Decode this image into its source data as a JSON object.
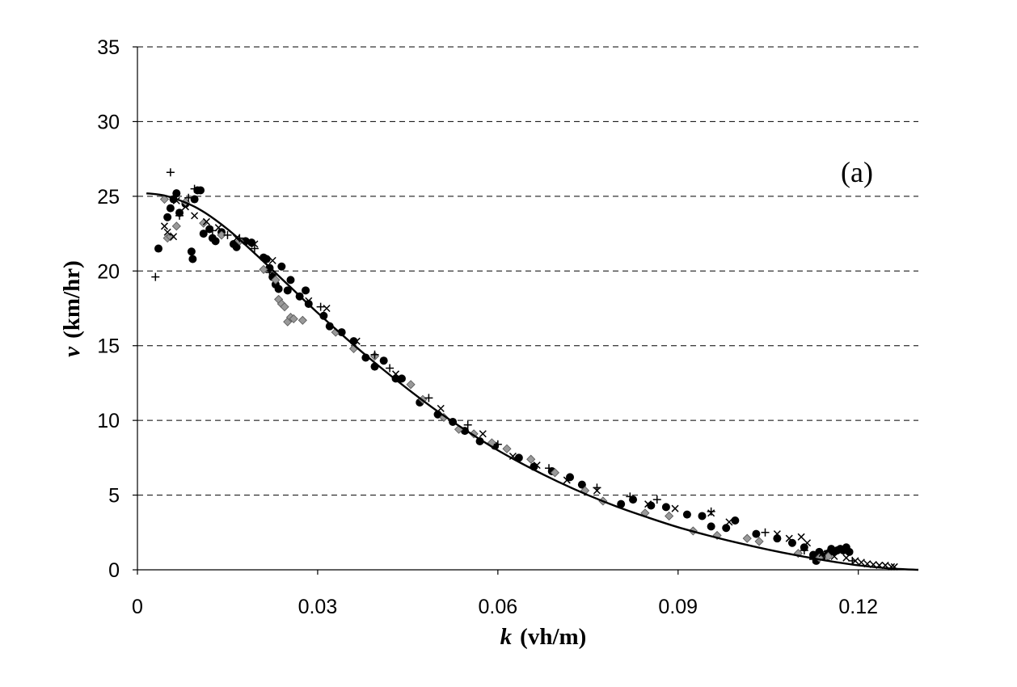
{
  "chart_data": {
    "type": "scatter",
    "panel_label": "(a)",
    "xlabel": {
      "symbol": "k",
      "unit": "(vh/m)"
    },
    "ylabel": {
      "symbol": "v",
      "unit": "(km/hr)"
    },
    "xlim": [
      0,
      0.13
    ],
    "ylim": [
      0,
      35
    ],
    "x_ticks": [
      0,
      0.03,
      0.06,
      0.09,
      0.12
    ],
    "x_tick_labels": [
      "0",
      "0.03",
      "0.06",
      "0.09",
      "0.12"
    ],
    "y_ticks": [
      0,
      5,
      10,
      15,
      20,
      25,
      30,
      35
    ],
    "y_tick_labels": [
      "0",
      "5",
      "10",
      "15",
      "20",
      "25",
      "30",
      "35"
    ],
    "grid": "horizontal dashed",
    "colors": {
      "dark": "#000000",
      "gray_marker": "#999999"
    },
    "fit_curve": {
      "x": [
        0.0015,
        0.005,
        0.01,
        0.015,
        0.02,
        0.025,
        0.03,
        0.035,
        0.04,
        0.045,
        0.05,
        0.055,
        0.06,
        0.065,
        0.07,
        0.075,
        0.08,
        0.085,
        0.09,
        0.095,
        0.1,
        0.105,
        0.11,
        0.115,
        0.12,
        0.125,
        0.13
      ],
      "y": [
        25.2,
        25.0,
        24.2,
        22.8,
        21.0,
        19.1,
        17.2,
        15.4,
        13.7,
        12.1,
        10.6,
        9.25,
        8.0,
        6.9,
        5.9,
        5.0,
        4.2,
        3.5,
        2.85,
        2.3,
        1.8,
        1.35,
        0.95,
        0.6,
        0.3,
        0.1,
        0.0
      ]
    },
    "series": [
      {
        "marker": "circle",
        "points": [
          [
            0.0035,
            21.5
          ],
          [
            0.005,
            23.6
          ],
          [
            0.0055,
            24.2
          ],
          [
            0.006,
            24.8
          ],
          [
            0.0065,
            25.2
          ],
          [
            0.007,
            23.9
          ],
          [
            0.008,
            24.5
          ],
          [
            0.009,
            21.3
          ],
          [
            0.0092,
            20.8
          ],
          [
            0.0095,
            24.8
          ],
          [
            0.01,
            25.4
          ],
          [
            0.0105,
            25.4
          ],
          [
            0.011,
            22.5
          ],
          [
            0.012,
            22.8
          ],
          [
            0.0125,
            22.2
          ],
          [
            0.013,
            22.0
          ],
          [
            0.014,
            22.6
          ],
          [
            0.016,
            21.8
          ],
          [
            0.0165,
            21.6
          ],
          [
            0.018,
            22.0
          ],
          [
            0.019,
            21.9
          ],
          [
            0.021,
            20.9
          ],
          [
            0.0215,
            20.8
          ],
          [
            0.022,
            20.2
          ],
          [
            0.0225,
            19.6
          ],
          [
            0.023,
            19.1
          ],
          [
            0.0235,
            18.8
          ],
          [
            0.024,
            20.3
          ],
          [
            0.025,
            18.7
          ],
          [
            0.0255,
            19.4
          ],
          [
            0.027,
            18.3
          ],
          [
            0.028,
            18.7
          ],
          [
            0.0285,
            17.8
          ],
          [
            0.031,
            17.0
          ],
          [
            0.032,
            16.3
          ],
          [
            0.034,
            15.9
          ],
          [
            0.036,
            15.3
          ],
          [
            0.038,
            14.2
          ],
          [
            0.0395,
            13.6
          ],
          [
            0.041,
            14.0
          ],
          [
            0.043,
            12.8
          ],
          [
            0.044,
            12.8
          ],
          [
            0.047,
            11.2
          ],
          [
            0.05,
            10.4
          ],
          [
            0.0525,
            9.9
          ],
          [
            0.0545,
            9.3
          ],
          [
            0.057,
            8.6
          ],
          [
            0.0595,
            8.3
          ],
          [
            0.0635,
            7.5
          ],
          [
            0.066,
            6.9
          ],
          [
            0.069,
            6.6
          ],
          [
            0.072,
            6.2
          ],
          [
            0.074,
            5.7
          ],
          [
            0.0805,
            4.4
          ],
          [
            0.0825,
            4.7
          ],
          [
            0.0855,
            4.3
          ],
          [
            0.088,
            4.2
          ],
          [
            0.0915,
            3.7
          ],
          [
            0.094,
            3.6
          ],
          [
            0.0955,
            2.9
          ],
          [
            0.098,
            2.8
          ],
          [
            0.0995,
            3.3
          ],
          [
            0.103,
            2.4
          ],
          [
            0.1065,
            2.1
          ],
          [
            0.109,
            1.8
          ],
          [
            0.111,
            1.5
          ],
          [
            0.1125,
            1.0
          ],
          [
            0.113,
            0.6
          ],
          [
            0.1135,
            1.2
          ],
          [
            0.114,
            0.9
          ],
          [
            0.115,
            1.1
          ],
          [
            0.1155,
            1.4
          ],
          [
            0.116,
            1.2
          ],
          [
            0.1165,
            1.3
          ],
          [
            0.117,
            1.4
          ],
          [
            0.1175,
            1.3
          ],
          [
            0.118,
            1.5
          ],
          [
            0.1185,
            1.2
          ]
        ]
      },
      {
        "marker": "diamond",
        "points": [
          [
            0.0045,
            24.8
          ],
          [
            0.005,
            22.2
          ],
          [
            0.0055,
            22.3
          ],
          [
            0.0065,
            23.0
          ],
          [
            0.008,
            24.6
          ],
          [
            0.011,
            23.2
          ],
          [
            0.014,
            22.4
          ],
          [
            0.017,
            22.0
          ],
          [
            0.021,
            20.1
          ],
          [
            0.023,
            19.4
          ],
          [
            0.0235,
            18.1
          ],
          [
            0.024,
            17.8
          ],
          [
            0.0245,
            17.6
          ],
          [
            0.025,
            16.6
          ],
          [
            0.0255,
            16.9
          ],
          [
            0.026,
            16.8
          ],
          [
            0.0275,
            16.7
          ],
          [
            0.033,
            15.9
          ],
          [
            0.036,
            14.8
          ],
          [
            0.0395,
            14.3
          ],
          [
            0.0455,
            12.4
          ],
          [
            0.0475,
            11.4
          ],
          [
            0.051,
            10.2
          ],
          [
            0.0535,
            9.4
          ],
          [
            0.056,
            9.1
          ],
          [
            0.059,
            8.5
          ],
          [
            0.0615,
            8.1
          ],
          [
            0.0655,
            7.4
          ],
          [
            0.0695,
            6.5
          ],
          [
            0.0745,
            5.3
          ],
          [
            0.0775,
            4.6
          ],
          [
            0.0845,
            3.8
          ],
          [
            0.0885,
            3.6
          ],
          [
            0.0925,
            2.6
          ],
          [
            0.0965,
            2.3
          ],
          [
            0.1015,
            2.1
          ],
          [
            0.1035,
            1.9
          ],
          [
            0.11,
            1.1
          ],
          [
            0.1135,
            0.8
          ],
          [
            0.115,
            0.9
          ]
        ]
      },
      {
        "marker": "plus",
        "points": [
          [
            0.003,
            19.6
          ],
          [
            0.0055,
            26.6
          ],
          [
            0.007,
            23.7
          ],
          [
            0.0085,
            24.9
          ],
          [
            0.0095,
            25.5
          ],
          [
            0.0125,
            22.7
          ],
          [
            0.015,
            22.4
          ],
          [
            0.017,
            22.2
          ],
          [
            0.0195,
            21.5
          ],
          [
            0.022,
            19.9
          ],
          [
            0.0305,
            17.6
          ],
          [
            0.0395,
            14.4
          ],
          [
            0.042,
            13.5
          ],
          [
            0.0485,
            11.5
          ],
          [
            0.055,
            9.7
          ],
          [
            0.06,
            8.4
          ],
          [
            0.0685,
            6.8
          ],
          [
            0.0765,
            5.5
          ],
          [
            0.082,
            4.9
          ],
          [
            0.0865,
            4.7
          ],
          [
            0.0955,
            3.9
          ],
          [
            0.1045,
            2.5
          ],
          [
            0.111,
            1.3
          ],
          [
            0.1125,
            0.7
          ],
          [
            0.119,
            0.6
          ]
        ]
      },
      {
        "marker": "cross",
        "points": [
          [
            0.0045,
            23.0
          ],
          [
            0.005,
            22.6
          ],
          [
            0.006,
            22.3
          ],
          [
            0.0065,
            24.7
          ],
          [
            0.008,
            24.3
          ],
          [
            0.0095,
            23.7
          ],
          [
            0.0115,
            23.3
          ],
          [
            0.0135,
            22.9
          ],
          [
            0.0165,
            22.2
          ],
          [
            0.0195,
            21.8
          ],
          [
            0.0225,
            20.7
          ],
          [
            0.0285,
            18.0
          ],
          [
            0.0315,
            17.5
          ],
          [
            0.0365,
            15.3
          ],
          [
            0.043,
            13.1
          ],
          [
            0.0505,
            10.8
          ],
          [
            0.0575,
            9.1
          ],
          [
            0.0625,
            7.6
          ],
          [
            0.0665,
            7.0
          ],
          [
            0.0715,
            6.0
          ],
          [
            0.0765,
            5.3
          ],
          [
            0.085,
            4.4
          ],
          [
            0.0895,
            4.1
          ],
          [
            0.0955,
            3.8
          ],
          [
            0.0985,
            3.2
          ],
          [
            0.1065,
            2.4
          ],
          [
            0.1085,
            2.1
          ],
          [
            0.1105,
            2.2
          ],
          [
            0.1115,
            1.8
          ],
          [
            0.114,
            1.1
          ],
          [
            0.116,
            0.9
          ],
          [
            0.118,
            0.8
          ],
          [
            0.1195,
            0.6
          ],
          [
            0.1205,
            0.5
          ],
          [
            0.1215,
            0.4
          ],
          [
            0.1225,
            0.35
          ],
          [
            0.1235,
            0.3
          ],
          [
            0.1245,
            0.3
          ],
          [
            0.1255,
            0.2
          ],
          [
            0.126,
            0.2
          ]
        ]
      }
    ]
  }
}
